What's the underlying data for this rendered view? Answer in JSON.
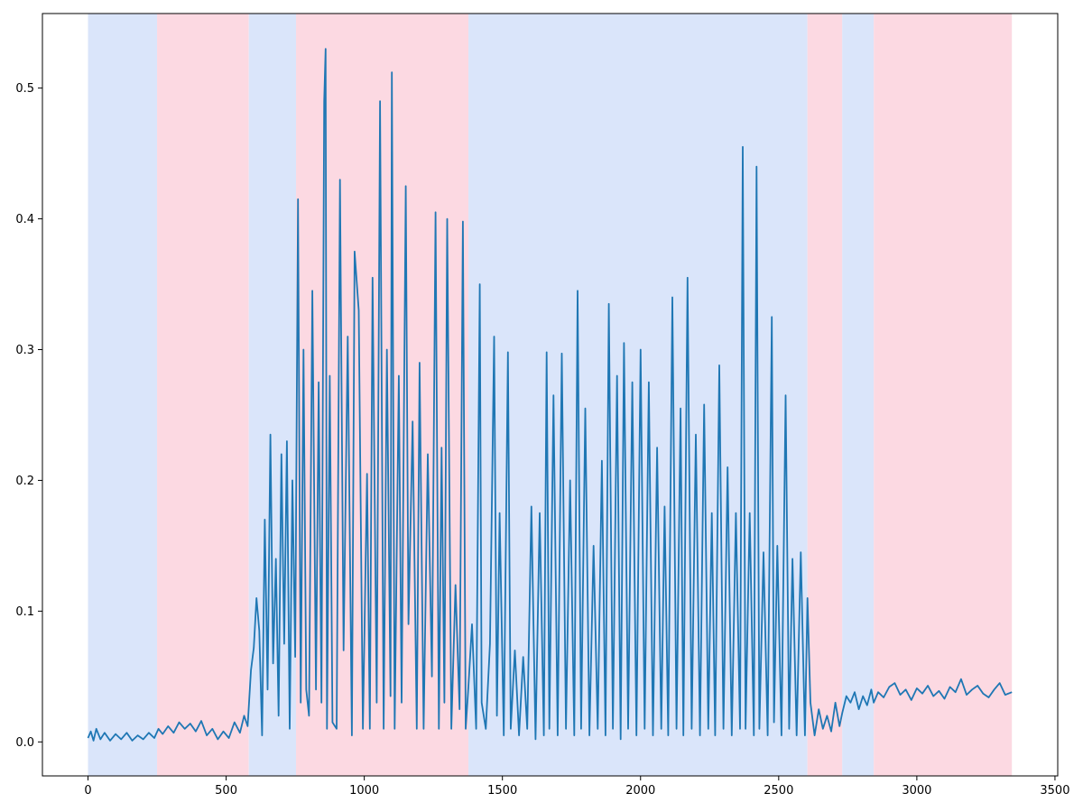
{
  "chart_data": {
    "type": "line",
    "title": "",
    "xlabel": "",
    "ylabel": "",
    "xlim": [
      -165,
      3510
    ],
    "ylim": [
      -0.026,
      0.557
    ],
    "grid": false,
    "x_ticks": [
      0,
      500,
      1000,
      1500,
      2000,
      2500,
      3000,
      3500
    ],
    "x_tick_labels": [
      "0",
      "500",
      "1000",
      "1500",
      "2000",
      "2500",
      "3000",
      "3500"
    ],
    "y_ticks": [
      0.0,
      0.1,
      0.2,
      0.3,
      0.4,
      0.5
    ],
    "y_tick_labels": [
      "0.0",
      "0.1",
      "0.2",
      "0.3",
      "0.4",
      "0.5"
    ],
    "regions": [
      {
        "x_start": 0,
        "x_end": 250,
        "color": "#dae5fa"
      },
      {
        "x_start": 250,
        "x_end": 582,
        "color": "#fcd9e2"
      },
      {
        "x_start": 582,
        "x_end": 753,
        "color": "#dae5fa"
      },
      {
        "x_start": 753,
        "x_end": 1377,
        "color": "#fcd9e2"
      },
      {
        "x_start": 1377,
        "x_end": 2604,
        "color": "#dae5fa"
      },
      {
        "x_start": 2604,
        "x_end": 2730,
        "color": "#fcd9e2"
      },
      {
        "x_start": 2730,
        "x_end": 2844,
        "color": "#dae5fa"
      },
      {
        "x_start": 2844,
        "x_end": 3344,
        "color": "#fcd9e2"
      }
    ],
    "series": [
      {
        "color": "#1f77b4",
        "x": [
          0,
          10,
          20,
          30,
          45,
          60,
          80,
          100,
          120,
          140,
          160,
          180,
          200,
          220,
          240,
          255,
          270,
          290,
          310,
          330,
          350,
          370,
          390,
          410,
          430,
          450,
          470,
          490,
          510,
          530,
          550,
          565,
          578,
          590,
          600,
          610,
          620,
          630,
          640,
          650,
          660,
          670,
          680,
          690,
          700,
          710,
          720,
          730,
          740,
          750,
          760,
          770,
          780,
          790,
          800,
          812,
          825,
          835,
          845,
          855,
          860,
          865,
          875,
          885,
          900,
          912,
          925,
          940,
          955,
          965,
          980,
          995,
          1010,
          1020,
          1030,
          1045,
          1057,
          1070,
          1082,
          1095,
          1100,
          1110,
          1125,
          1135,
          1150,
          1160,
          1175,
          1190,
          1200,
          1215,
          1230,
          1245,
          1258,
          1270,
          1280,
          1290,
          1300,
          1315,
          1330,
          1345,
          1357,
          1367,
          1377,
          1390,
          1405,
          1418,
          1425,
          1440,
          1455,
          1470,
          1480,
          1490,
          1505,
          1520,
          1530,
          1545,
          1560,
          1575,
          1590,
          1605,
          1620,
          1635,
          1650,
          1660,
          1670,
          1685,
          1700,
          1715,
          1730,
          1745,
          1760,
          1772,
          1785,
          1800,
          1815,
          1830,
          1845,
          1860,
          1873,
          1885,
          1900,
          1915,
          1928,
          1940,
          1955,
          1970,
          1985,
          2000,
          2015,
          2030,
          2045,
          2060,
          2075,
          2087,
          2100,
          2115,
          2130,
          2145,
          2155,
          2170,
          2185,
          2200,
          2215,
          2230,
          2245,
          2258,
          2270,
          2285,
          2300,
          2315,
          2330,
          2345,
          2360,
          2370,
          2380,
          2395,
          2410,
          2420,
          2430,
          2445,
          2460,
          2475,
          2483,
          2495,
          2510,
          2525,
          2538,
          2550,
          2565,
          2580,
          2595,
          2604,
          2615,
          2630,
          2645,
          2660,
          2675,
          2690,
          2705,
          2720,
          2730,
          2745,
          2760,
          2775,
          2790,
          2805,
          2820,
          2835,
          2844,
          2860,
          2880,
          2900,
          2920,
          2940,
          2960,
          2980,
          3000,
          3020,
          3040,
          3060,
          3080,
          3100,
          3120,
          3140,
          3160,
          3180,
          3200,
          3220,
          3240,
          3260,
          3280,
          3300,
          3320,
          3344
        ],
        "y": [
          0.003,
          0.008,
          0.001,
          0.01,
          0.002,
          0.007,
          0.001,
          0.006,
          0.002,
          0.007,
          0.001,
          0.005,
          0.002,
          0.007,
          0.003,
          0.01,
          0.006,
          0.012,
          0.007,
          0.015,
          0.01,
          0.014,
          0.008,
          0.016,
          0.005,
          0.01,
          0.002,
          0.008,
          0.003,
          0.015,
          0.007,
          0.02,
          0.012,
          0.055,
          0.072,
          0.11,
          0.085,
          0.005,
          0.17,
          0.04,
          0.235,
          0.06,
          0.14,
          0.02,
          0.22,
          0.075,
          0.23,
          0.01,
          0.2,
          0.065,
          0.415,
          0.03,
          0.3,
          0.04,
          0.02,
          0.345,
          0.04,
          0.275,
          0.03,
          0.49,
          0.53,
          0.01,
          0.28,
          0.015,
          0.01,
          0.43,
          0.07,
          0.31,
          0.005,
          0.375,
          0.33,
          0.01,
          0.205,
          0.01,
          0.355,
          0.03,
          0.49,
          0.01,
          0.3,
          0.035,
          0.512,
          0.01,
          0.28,
          0.03,
          0.425,
          0.09,
          0.245,
          0.01,
          0.29,
          0.01,
          0.22,
          0.05,
          0.405,
          0.01,
          0.225,
          0.03,
          0.4,
          0.01,
          0.12,
          0.025,
          0.398,
          0.01,
          0.042,
          0.09,
          0.01,
          0.35,
          0.03,
          0.01,
          0.075,
          0.31,
          0.02,
          0.175,
          0.005,
          0.298,
          0.01,
          0.07,
          0.005,
          0.065,
          0.01,
          0.18,
          0.002,
          0.175,
          0.005,
          0.298,
          0.01,
          0.265,
          0.005,
          0.297,
          0.01,
          0.2,
          0.005,
          0.345,
          0.01,
          0.255,
          0.005,
          0.15,
          0.01,
          0.215,
          0.005,
          0.335,
          0.01,
          0.28,
          0.002,
          0.305,
          0.01,
          0.275,
          0.005,
          0.3,
          0.01,
          0.275,
          0.005,
          0.225,
          0.01,
          0.18,
          0.005,
          0.34,
          0.01,
          0.255,
          0.005,
          0.355,
          0.01,
          0.235,
          0.005,
          0.258,
          0.01,
          0.175,
          0.005,
          0.288,
          0.01,
          0.21,
          0.005,
          0.175,
          0.01,
          0.455,
          0.01,
          0.175,
          0.005,
          0.44,
          0.01,
          0.145,
          0.005,
          0.325,
          0.015,
          0.15,
          0.005,
          0.265,
          0.01,
          0.14,
          0.005,
          0.145,
          0.005,
          0.11,
          0.03,
          0.005,
          0.025,
          0.01,
          0.02,
          0.008,
          0.03,
          0.012,
          0.022,
          0.035,
          0.03,
          0.038,
          0.025,
          0.035,
          0.028,
          0.04,
          0.03,
          0.038,
          0.034,
          0.042,
          0.045,
          0.036,
          0.04,
          0.032,
          0.041,
          0.037,
          0.043,
          0.035,
          0.039,
          0.033,
          0.042,
          0.038,
          0.048,
          0.036,
          0.04,
          0.043,
          0.037,
          0.034,
          0.04,
          0.045,
          0.036,
          0.038
        ]
      }
    ]
  }
}
